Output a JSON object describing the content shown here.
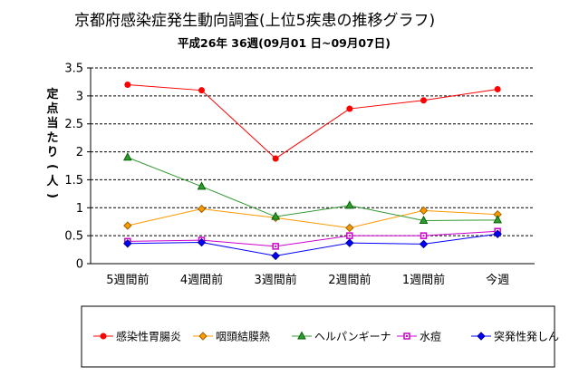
{
  "chart_data": {
    "type": "line",
    "title": "京都府感染症発生動向調査(上位5疾患の推移グラフ)",
    "subtitle": "平成26年 36週(09月01 日~09月07日)",
    "ylabel": "定点当たり(人)",
    "xlabel": "",
    "ylim": [
      0,
      3.5
    ],
    "yticks": [
      "0",
      "0.5",
      "1",
      "1.5",
      "2",
      "2.5",
      "3",
      "3.5"
    ],
    "categories": [
      "5週間前",
      "4週間前",
      "3週間前",
      "2週間前",
      "1週間前",
      "今週"
    ],
    "grid": true,
    "legend_position": "bottom",
    "series": [
      {
        "name": "感染性胃腸炎",
        "color": "#ff0000",
        "marker": "circle",
        "values": [
          3.2,
          3.1,
          1.88,
          2.77,
          2.92,
          3.12
        ]
      },
      {
        "name": "咽頭結膜熱",
        "color": "#ff9900",
        "marker": "diamond",
        "values": [
          0.68,
          0.98,
          0.82,
          0.64,
          0.95,
          0.88
        ]
      },
      {
        "name": "ヘルパンギーナ",
        "color": "#339933",
        "marker": "triangle",
        "values": [
          1.9,
          1.38,
          0.84,
          1.04,
          0.77,
          0.78
        ]
      },
      {
        "name": "水痘",
        "color": "#cc00cc",
        "marker": "square",
        "values": [
          0.4,
          0.42,
          0.31,
          0.5,
          0.5,
          0.58
        ]
      },
      {
        "name": "突発性発しん",
        "color": "#0000ff",
        "marker": "diamond",
        "values": [
          0.36,
          0.38,
          0.14,
          0.37,
          0.35,
          0.53
        ]
      }
    ]
  }
}
